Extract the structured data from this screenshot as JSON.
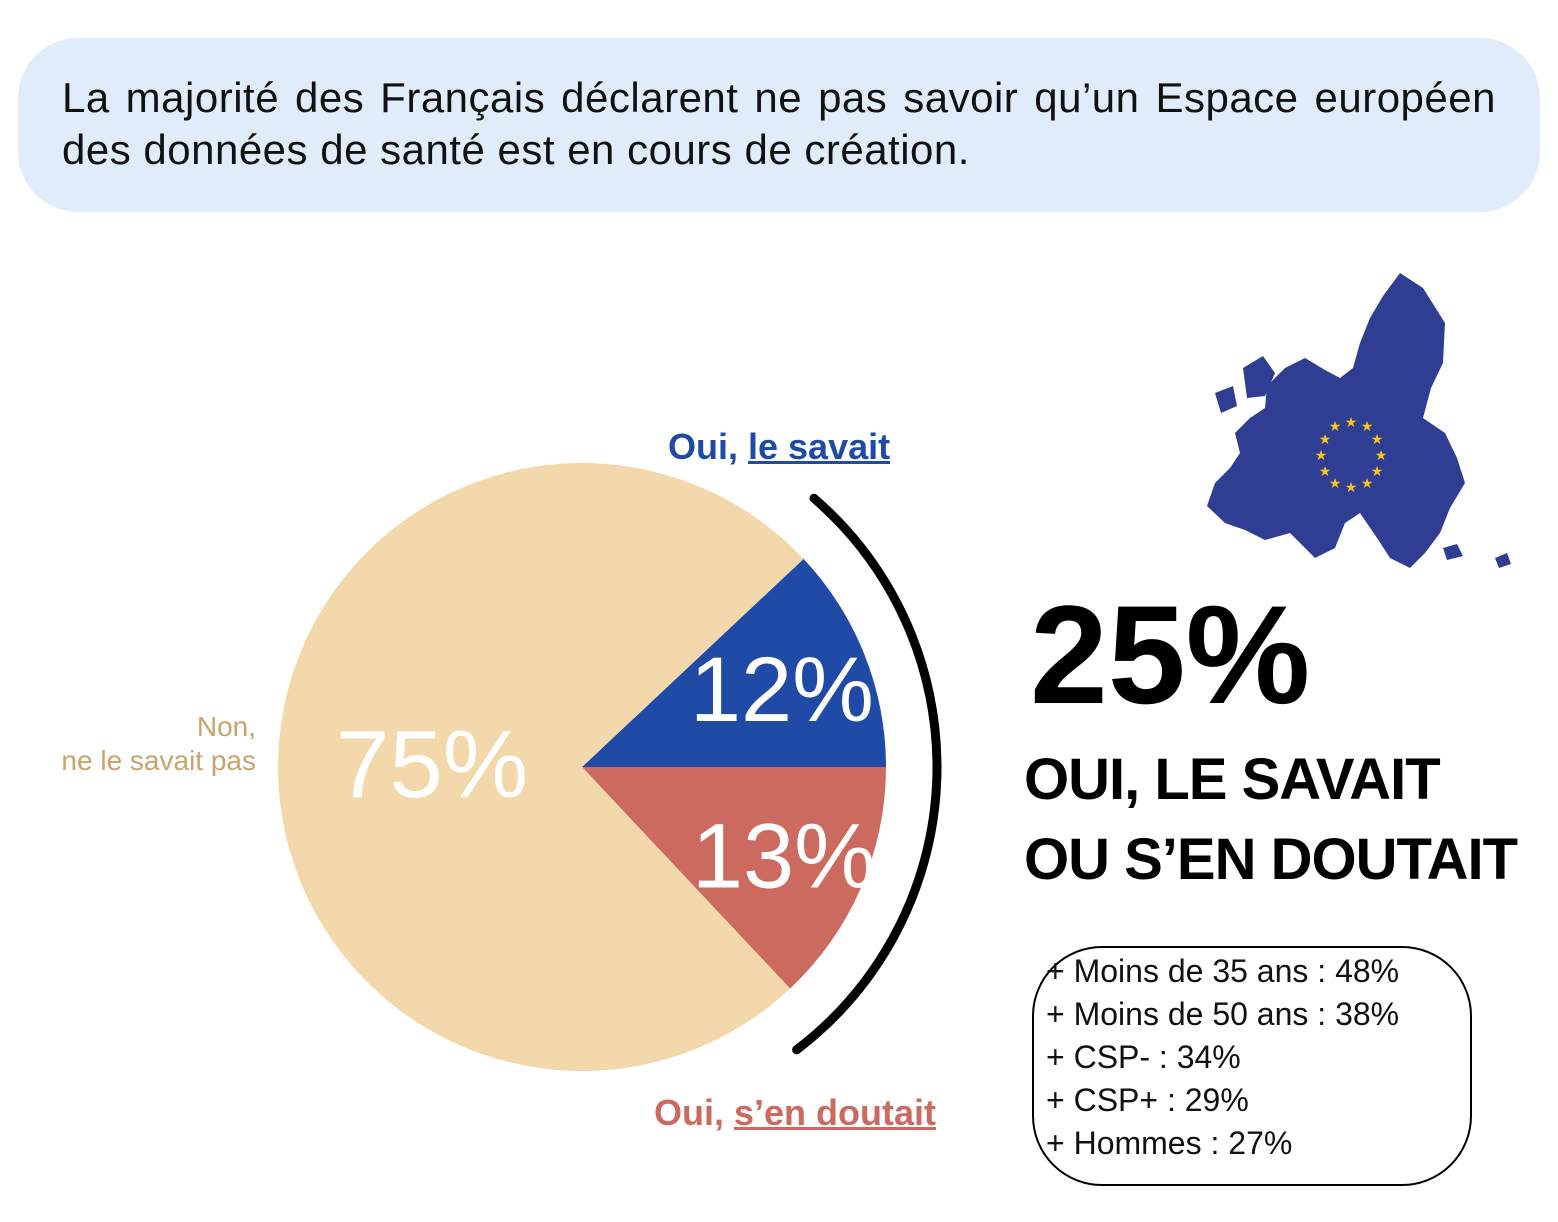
{
  "banner": {
    "text": "La majorité des Français déclarent ne pas savoir qu’un Espace européen des données de santé est en cours de création."
  },
  "labels": {
    "oui_savait_prefix": "Oui, ",
    "oui_savait_underlined": "le savait",
    "oui_doutait_prefix": "Oui, ",
    "oui_doutait_underlined": "s’en doutait",
    "non_line1": "Non,",
    "non_line2": "ne le savait pas"
  },
  "colors": {
    "savait": "#1f4aa6",
    "doutait": "#cc6a5f",
    "non": "#f3d8ab",
    "non_label": "#c9a36a",
    "banner_bg": "#e1ecfb",
    "eu_map": "#2f3d93",
    "eu_stars": "#f5c518"
  },
  "chart_data": {
    "type": "pie",
    "slices": [
      {
        "name": "Oui, le savait",
        "value": 12,
        "label": "12%",
        "color": "#1f4aa6"
      },
      {
        "name": "Oui, s’en doutait",
        "value": 13,
        "label": "13%",
        "color": "#cc6a5f"
      },
      {
        "name": "Non, ne le savait pas",
        "value": 75,
        "label": "75%",
        "color": "#f3d8ab"
      }
    ]
  },
  "summary": {
    "big_value": "25%",
    "line1": "OUI, LE SAVAIT",
    "line2": "OU S’EN DOUTAIT"
  },
  "details": [
    "+ Moins de 35 ans : 48%",
    "+ Moins de 50 ans : 38%",
    "+ CSP- : 34%",
    "+ CSP+ : 29%",
    "+ Hommes : 27%"
  ],
  "icons": {
    "eu_map": "eu-map-icon"
  }
}
